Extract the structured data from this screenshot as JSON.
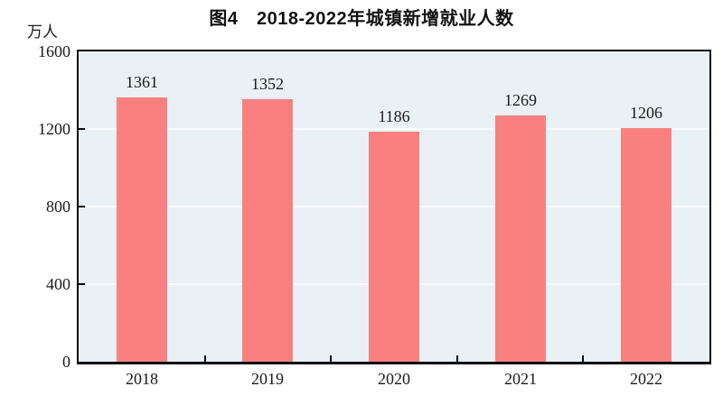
{
  "chart_data": {
    "type": "bar",
    "title": "图4　2018-2022年城镇新增就业人数",
    "unit": "万人",
    "categories": [
      "2018",
      "2019",
      "2020",
      "2021",
      "2022"
    ],
    "values": [
      1361,
      1352,
      1186,
      1269,
      1206
    ],
    "ylabel": "万人",
    "xlabel": "",
    "ylim": [
      0,
      1600
    ],
    "yticks": [
      0,
      400,
      800,
      1200,
      1600
    ],
    "grid": "horizontal",
    "legend_position": "none",
    "colors": {
      "bar": "#FA8080",
      "plot_background": "#EAF1F5",
      "gridline": "#F9FCFE",
      "axis": "#0A0A0A",
      "text": "#1B1B1B"
    }
  }
}
